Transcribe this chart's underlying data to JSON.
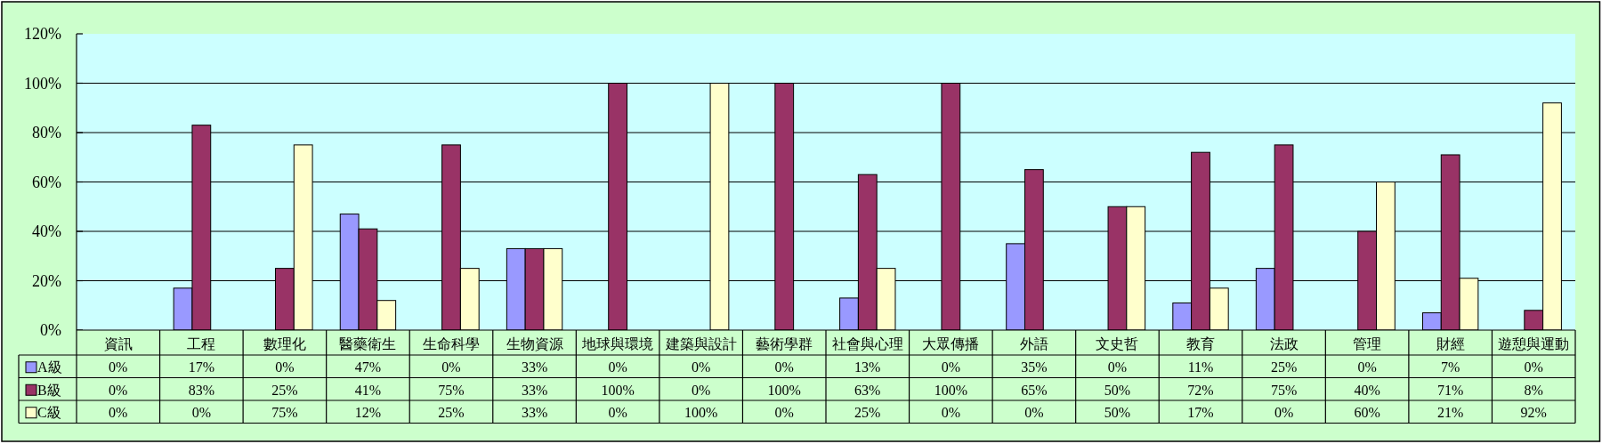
{
  "chart_data": {
    "type": "bar",
    "categories": [
      "資訊",
      "工程",
      "數理化",
      "醫藥衛生",
      "生命科學",
      "生物資源",
      "地球與環境",
      "建築與設計",
      "藝術學群",
      "社會與心理",
      "大眾傳播",
      "外語",
      "文史哲",
      "教育",
      "法政",
      "管理",
      "財經",
      "遊憩與運動"
    ],
    "series": [
      {
        "name": "A級",
        "color": "#9999ff",
        "values": [
          0,
          17,
          0,
          47,
          0,
          33,
          0,
          0,
          0,
          13,
          0,
          35,
          0,
          11,
          25,
          0,
          7,
          0
        ],
        "value_labels": [
          "0%",
          "17%",
          "0%",
          "47%",
          "0%",
          "33%",
          "0%",
          "0%",
          "0%",
          "13%",
          "0%",
          "35%",
          "0%",
          "11%",
          "25%",
          "0%",
          "7%",
          "0%"
        ]
      },
      {
        "name": "B級",
        "color": "#993366",
        "values": [
          0,
          83,
          25,
          41,
          75,
          33,
          100,
          0,
          100,
          63,
          100,
          65,
          50,
          72,
          75,
          40,
          71,
          8
        ],
        "value_labels": [
          "0%",
          "83%",
          "25%",
          "41%",
          "75%",
          "33%",
          "100%",
          "0%",
          "100%",
          "63%",
          "100%",
          "65%",
          "50%",
          "72%",
          "75%",
          "40%",
          "71%",
          "8%"
        ]
      },
      {
        "name": "C級",
        "color": "#ffffcc",
        "values": [
          0,
          0,
          75,
          12,
          25,
          33,
          0,
          100,
          0,
          25,
          0,
          0,
          50,
          17,
          0,
          60,
          21,
          92
        ],
        "value_labels": [
          "0%",
          "0%",
          "75%",
          "12%",
          "25%",
          "33%",
          "0%",
          "100%",
          "0%",
          "25%",
          "0%",
          "0%",
          "50%",
          "17%",
          "0%",
          "60%",
          "21%",
          "92%"
        ]
      }
    ],
    "ylim": [
      0,
      120
    ],
    "yticks": [
      {
        "value": 0,
        "label": "0%"
      },
      {
        "value": 20,
        "label": "20%"
      },
      {
        "value": 40,
        "label": "40%"
      },
      {
        "value": 60,
        "label": "60%"
      },
      {
        "value": 80,
        "label": "80%"
      },
      {
        "value": 100,
        "label": "100%"
      },
      {
        "value": 120,
        "label": "120%"
      }
    ],
    "grid": "y",
    "legend": "bottom left"
  }
}
